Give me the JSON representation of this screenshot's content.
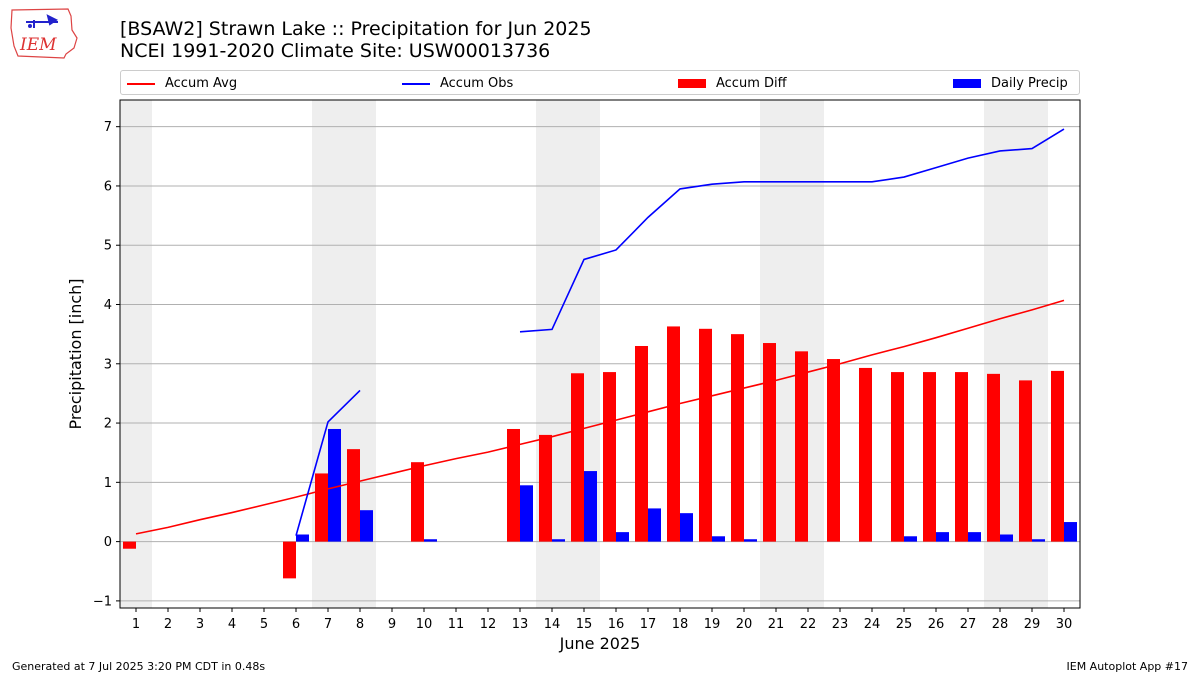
{
  "title_line1": "[BSAW2] Strawn Lake :: Precipitation for Jun 2025",
  "title_line2": "NCEI 1991-2020 Climate Site: USW00013736",
  "logo_text": "IEM",
  "footer_left": "Generated at 7 Jul 2025 3:20 PM CDT in 0.48s",
  "footer_right": "IEM Autoplot App #17",
  "colors": {
    "avg": "#ff0000",
    "obs": "#0000ff",
    "diff": "#ff0000",
    "daily": "#0000ff",
    "weekend_band": "#eeeeee",
    "grid": "#b0b0b0"
  },
  "chart_data": {
    "type": "bar",
    "xlabel": "June 2025",
    "ylabel": "Precipitation [inch]",
    "ylim": [
      -1.12,
      7.45
    ],
    "yticks": [
      -1,
      0,
      1,
      2,
      3,
      4,
      5,
      6,
      7
    ],
    "xlim": [
      0.5,
      30.5
    ],
    "x": [
      1,
      2,
      3,
      4,
      5,
      6,
      7,
      8,
      9,
      10,
      11,
      12,
      13,
      14,
      15,
      16,
      17,
      18,
      19,
      20,
      21,
      22,
      23,
      24,
      25,
      26,
      27,
      28,
      29,
      30
    ],
    "grid": "horizontal",
    "legend_placement": "top",
    "shaded_days": [
      [
        0.5,
        1.5
      ],
      [
        6.5,
        8.5
      ],
      [
        13.5,
        15.5
      ],
      [
        20.5,
        22.5
      ],
      [
        27.5,
        29.5
      ]
    ],
    "series": [
      {
        "name": "Accum Avg",
        "kind": "line",
        "values": [
          0.13,
          0.24,
          0.37,
          0.49,
          0.62,
          0.75,
          0.89,
          1.02,
          1.15,
          1.28,
          1.4,
          1.51,
          1.64,
          1.77,
          1.91,
          2.05,
          2.19,
          2.33,
          2.46,
          2.59,
          2.72,
          2.86,
          3.0,
          3.15,
          3.29,
          3.44,
          3.6,
          3.76,
          3.91,
          4.07
        ]
      },
      {
        "name": "Accum Obs",
        "kind": "line",
        "values": [
          null,
          null,
          null,
          null,
          null,
          0.1,
          2.02,
          2.55,
          null,
          null,
          null,
          null,
          3.54,
          3.58,
          4.76,
          4.92,
          5.47,
          5.95,
          6.03,
          6.07,
          6.07,
          6.07,
          6.07,
          6.07,
          6.15,
          6.31,
          6.47,
          6.59,
          6.63,
          6.96
        ]
      },
      {
        "name": "Accum Diff",
        "kind": "bar",
        "values": [
          -0.12,
          0,
          0,
          0,
          0,
          -0.62,
          1.15,
          1.56,
          0,
          1.34,
          0,
          0,
          1.9,
          1.8,
          2.84,
          2.86,
          3.3,
          3.63,
          3.59,
          3.5,
          3.35,
          3.21,
          3.08,
          2.93,
          2.86,
          2.86,
          2.86,
          2.83,
          2.72,
          2.88
        ]
      },
      {
        "name": "Daily Precip",
        "kind": "bar",
        "values": [
          0,
          0,
          0,
          0,
          0,
          0.12,
          1.9,
          0.53,
          0,
          0.04,
          0,
          0,
          0.95,
          0.04,
          1.19,
          0.16,
          0.56,
          0.48,
          0.09,
          0.04,
          0,
          0,
          0,
          0,
          0.09,
          0.16,
          0.16,
          0.12,
          0.04,
          0.33
        ]
      }
    ]
  }
}
